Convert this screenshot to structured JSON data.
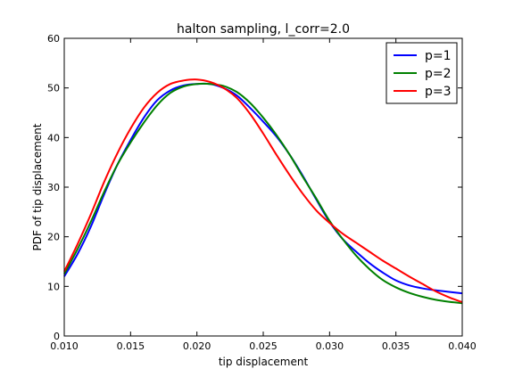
{
  "chart_data": {
    "type": "line",
    "title": "halton sampling, l_corr=2.0",
    "xlabel": "tip displacement",
    "ylabel": "PDF of tip displacement",
    "xlim": [
      0.01,
      0.04
    ],
    "ylim": [
      0,
      60
    ],
    "xticks": [
      "0.010",
      "0.015",
      "0.020",
      "0.025",
      "0.030",
      "0.035",
      "0.040"
    ],
    "yticks": [
      "0",
      "10",
      "20",
      "30",
      "40",
      "50",
      "60"
    ],
    "grid": false,
    "legend": "top-right",
    "series": [
      {
        "name": "p=1",
        "color": "#0000ff",
        "x": [
          0.01,
          0.011,
          0.012,
          0.013,
          0.014,
          0.015,
          0.016,
          0.017,
          0.018,
          0.019,
          0.02,
          0.021,
          0.022,
          0.023,
          0.024,
          0.025,
          0.026,
          0.027,
          0.028,
          0.029,
          0.03,
          0.031,
          0.032,
          0.033,
          0.034,
          0.035,
          0.036,
          0.037,
          0.038,
          0.039,
          0.04
        ],
        "y": [
          12.0,
          16.5,
          22.0,
          28.5,
          34.5,
          39.5,
          44.0,
          47.5,
          49.5,
          50.5,
          50.8,
          50.8,
          50.0,
          48.5,
          46.0,
          43.2,
          40.2,
          36.5,
          32.2,
          27.5,
          23.0,
          19.5,
          17.0,
          14.7,
          12.8,
          11.2,
          10.2,
          9.6,
          9.2,
          8.9,
          8.6
        ]
      },
      {
        "name": "p=2",
        "color": "#008000",
        "x": [
          0.01,
          0.011,
          0.012,
          0.013,
          0.014,
          0.015,
          0.016,
          0.017,
          0.018,
          0.019,
          0.02,
          0.021,
          0.022,
          0.023,
          0.024,
          0.025,
          0.026,
          0.027,
          0.028,
          0.029,
          0.03,
          0.031,
          0.032,
          0.033,
          0.034,
          0.035,
          0.036,
          0.037,
          0.038,
          0.039,
          0.04
        ],
        "y": [
          12.5,
          17.5,
          23.0,
          29.0,
          34.5,
          39.0,
          43.0,
          46.5,
          49.0,
          50.3,
          50.8,
          50.8,
          50.4,
          49.2,
          47.0,
          44.0,
          40.5,
          36.5,
          32.0,
          27.7,
          23.2,
          19.5,
          16.2,
          13.5,
          11.3,
          9.8,
          8.7,
          7.9,
          7.3,
          6.9,
          6.6
        ]
      },
      {
        "name": "p=3",
        "color": "#ff0000",
        "x": [
          0.01,
          0.011,
          0.012,
          0.013,
          0.014,
          0.015,
          0.016,
          0.017,
          0.018,
          0.019,
          0.02,
          0.021,
          0.022,
          0.023,
          0.024,
          0.025,
          0.026,
          0.027,
          0.028,
          0.029,
          0.03,
          0.031,
          0.032,
          0.033,
          0.034,
          0.035,
          0.036,
          0.037,
          0.038,
          0.039,
          0.04
        ],
        "y": [
          13.0,
          18.5,
          24.5,
          31.0,
          36.8,
          41.8,
          46.0,
          49.0,
          50.8,
          51.5,
          51.7,
          51.2,
          50.0,
          48.0,
          44.8,
          40.8,
          36.5,
          32.4,
          28.6,
          25.3,
          22.8,
          20.6,
          18.8,
          17.0,
          15.2,
          13.6,
          12.0,
          10.5,
          9.0,
          7.8,
          6.8
        ]
      }
    ]
  }
}
